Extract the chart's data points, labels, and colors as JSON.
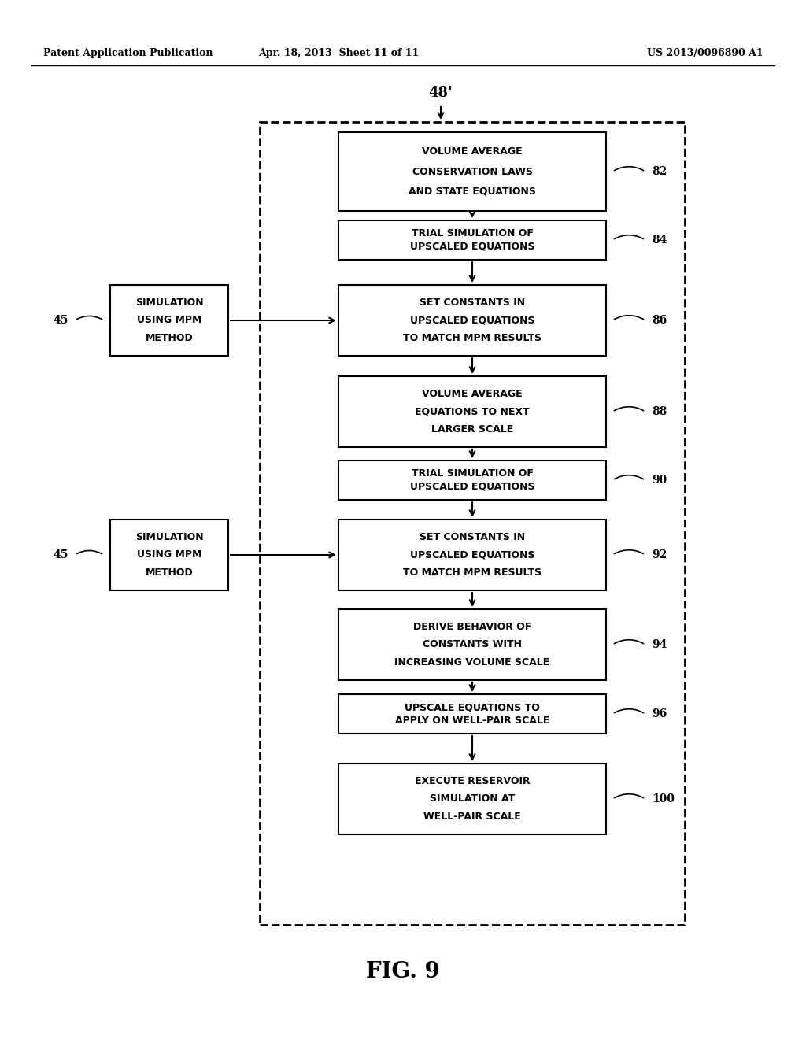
{
  "header_left": "Patent Application Publication",
  "header_mid": "Apr. 18, 2013  Sheet 11 of 11",
  "header_right": "US 2013/0096890 A1",
  "fig_label": "FIG. 9",
  "outer_box_label": "48’",
  "boxes": [
    {
      "lines": [
        "VOLUME AVERAGE",
        "CONSERVATION LAWS",
        "AND STATE EQUATIONS"
      ],
      "label": "82"
    },
    {
      "lines": [
        "TRIAL SIMULATION OF",
        "UPSCALED EQUATIONS"
      ],
      "label": "84"
    },
    {
      "lines": [
        "SET CONSTANTS IN",
        "UPSCALED EQUATIONS",
        "TO MATCH MPM RESULTS"
      ],
      "label": "86"
    },
    {
      "lines": [
        "VOLUME AVERAGE",
        "EQUATIONS TO NEXT",
        "LARGER SCALE"
      ],
      "label": "88"
    },
    {
      "lines": [
        "TRIAL SIMULATION OF",
        "UPSCALED EQUATIONS"
      ],
      "label": "90"
    },
    {
      "lines": [
        "SET CONSTANTS IN",
        "UPSCALED EQUATIONS",
        "TO MATCH MPM RESULTS"
      ],
      "label": "92"
    },
    {
      "lines": [
        "DERIVE BEHAVIOR OF",
        "CONSTANTS WITH",
        "INCREASING VOLUME SCALE"
      ],
      "label": "94"
    },
    {
      "lines": [
        "UPSCALE EQUATIONS TO",
        "APPLY ON WELL-PAIR SCALE"
      ],
      "label": "96"
    },
    {
      "lines": [
        "EXECUTE RESERVOIR",
        "SIMULATION AT",
        "WELL-PAIR SCALE"
      ],
      "label": "100"
    }
  ],
  "side_box_lines": [
    "SIMULATION",
    "USING MPM",
    "METHOD"
  ],
  "side_box_label": "45",
  "side_connects_idx": [
    2,
    5
  ],
  "bg_color": "#ffffff",
  "box_color": "#ffffff",
  "box_edge_color": "#000000",
  "text_color": "#000000",
  "arrow_color": "#000000"
}
